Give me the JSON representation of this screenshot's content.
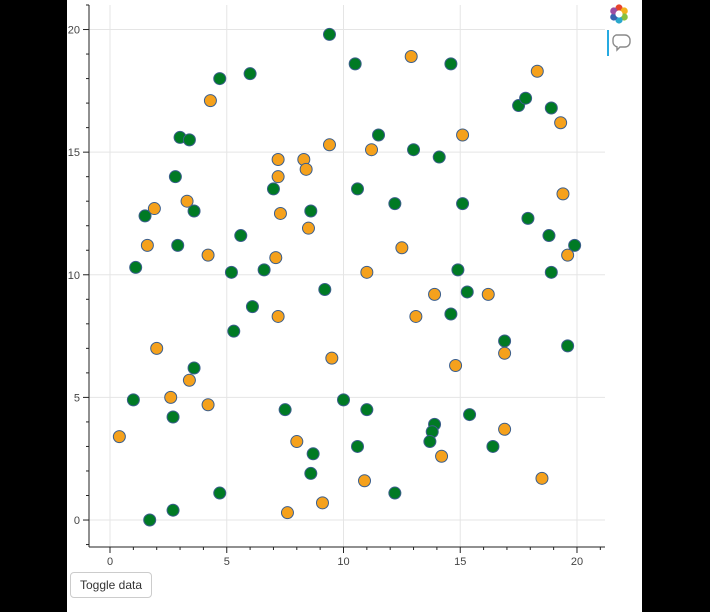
{
  "controls": {
    "toggle_label": "Toggle data"
  },
  "toolbar": {
    "tools": [
      "bokeh-logo-icon",
      "hover-tool-icon"
    ]
  },
  "colors": {
    "series_a": "#007a24",
    "series_b": "#f5a11c",
    "marker_outline": "#3b5e8c",
    "grid": "#e5e5e5",
    "axis": "#222222"
  },
  "chart_data": {
    "type": "scatter",
    "title": "",
    "xlabel": "",
    "ylabel": "",
    "xlim": [
      -0.9,
      21.2
    ],
    "ylim": [
      -1.1,
      21.0
    ],
    "grid": true,
    "legend": "none",
    "x_ticks": [
      0,
      5,
      10,
      15,
      20
    ],
    "y_ticks": [
      0,
      5,
      10,
      15,
      20
    ],
    "series": [
      {
        "color": "#007a24",
        "x": [
          9.4,
          10.5,
          14.6,
          4.7,
          6.0,
          17.5,
          17.8,
          18.9,
          3.0,
          3.4,
          11.5,
          13.0,
          14.1,
          2.8,
          7.0,
          10.6,
          1.5,
          3.6,
          8.6,
          12.2,
          15.1,
          17.9,
          5.6,
          18.8,
          2.9,
          19.9,
          1.1,
          5.2,
          6.6,
          14.9,
          18.9,
          15.3,
          9.2,
          6.1,
          14.6,
          5.3,
          16.9,
          19.6,
          3.6,
          1.0,
          10.0,
          7.5,
          11.0,
          2.7,
          15.4,
          13.9,
          13.8,
          13.7,
          10.6,
          16.4,
          8.7,
          8.6,
          4.7,
          12.2,
          2.7,
          1.7
        ],
        "y": [
          19.8,
          18.6,
          18.6,
          18.0,
          18.2,
          16.9,
          17.2,
          16.8,
          15.6,
          15.5,
          15.7,
          15.1,
          14.8,
          14.0,
          13.5,
          13.5,
          12.4,
          12.6,
          12.6,
          12.9,
          12.9,
          12.3,
          11.6,
          11.6,
          11.2,
          11.2,
          10.3,
          10.1,
          10.2,
          10.2,
          10.1,
          9.3,
          9.4,
          8.7,
          8.4,
          7.7,
          7.3,
          7.1,
          6.2,
          4.9,
          4.9,
          4.5,
          4.5,
          4.2,
          4.3,
          3.9,
          3.6,
          3.2,
          3.0,
          3.0,
          2.7,
          1.9,
          1.1,
          1.1,
          0.4,
          0.0
        ]
      },
      {
        "color": "#f5a11c",
        "x": [
          12.9,
          18.3,
          4.3,
          15.1,
          19.3,
          9.4,
          11.2,
          7.2,
          8.3,
          7.2,
          8.4,
          3.3,
          1.9,
          7.3,
          8.5,
          1.6,
          12.5,
          4.2,
          7.1,
          19.6,
          11.0,
          13.9,
          16.2,
          7.2,
          13.1,
          2.0,
          16.9,
          9.5,
          14.8,
          3.4,
          2.6,
          4.2,
          16.9,
          0.4,
          8.0,
          14.2,
          10.9,
          18.5,
          9.1,
          7.6,
          19.4
        ],
        "y": [
          18.9,
          18.3,
          17.1,
          15.7,
          16.2,
          15.3,
          15.1,
          14.7,
          14.7,
          14.0,
          14.3,
          13.0,
          12.7,
          12.5,
          11.9,
          11.2,
          11.1,
          10.8,
          10.7,
          10.8,
          10.1,
          9.2,
          9.2,
          8.3,
          8.3,
          7.0,
          6.8,
          6.6,
          6.3,
          5.7,
          5.0,
          4.7,
          3.7,
          3.4,
          3.2,
          2.6,
          1.6,
          1.7,
          0.7,
          0.3,
          13.3
        ]
      }
    ]
  }
}
